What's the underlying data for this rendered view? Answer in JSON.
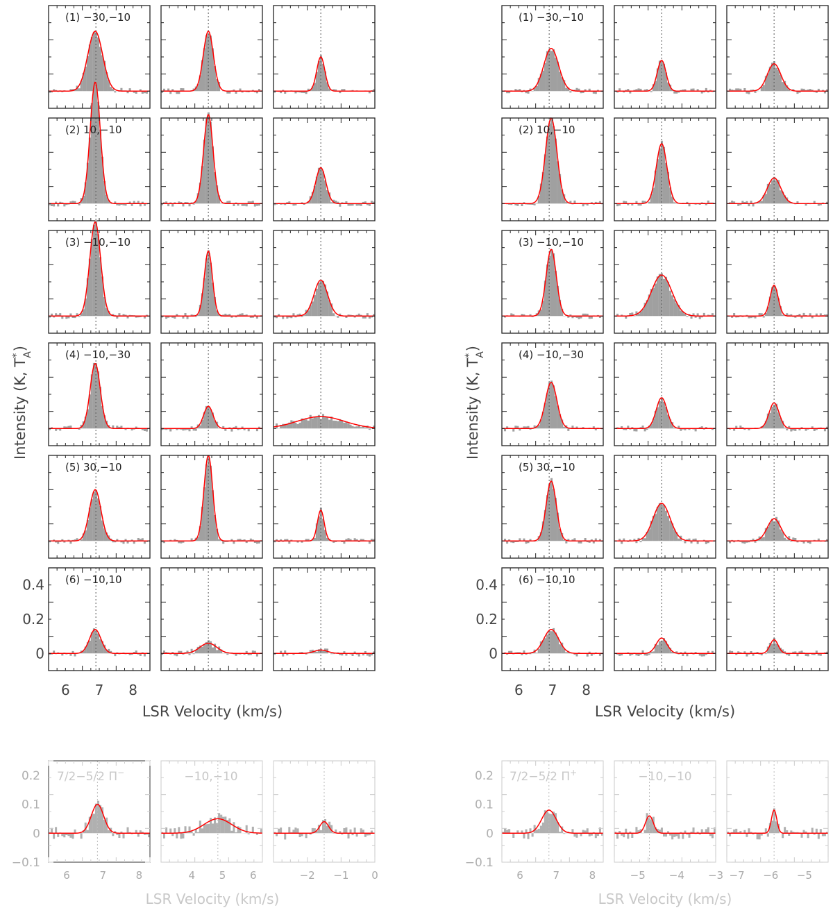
{
  "left_group": {
    "ylabel": "Intensity (K, T",
    "ylabel_sup": "*",
    "ylabel_sub": "A",
    "ylabel_close": ")",
    "xlabel": "LSR Velocity (km/s)",
    "x_ticks": [
      "6",
      "7",
      "8"
    ],
    "y_ticks": [
      "0.4",
      "0.2",
      "0"
    ],
    "row_labels": [
      "(1) −30,−10",
      "(2) 10,−10",
      "(3) −10,−10",
      "(4) −10,−30",
      "(5) 30,−10",
      "(6) −10,10"
    ]
  },
  "right_group": {
    "ylabel": "Intensity (K, T",
    "ylabel_sup": "*",
    "ylabel_sub": "A",
    "ylabel_close": ")",
    "xlabel": "LSR Velocity (km/s)",
    "x_ticks": [
      "6",
      "7",
      "8"
    ],
    "y_ticks": [
      "0.4",
      "0.2",
      "0"
    ],
    "row_labels": [
      "(1) −30,−10",
      "(2) 10,−10",
      "(3) −10,−10",
      "(4) −10,−30",
      "(5) 30,−10",
      "(6) −10,10"
    ]
  },
  "bottom_left": {
    "label_main": "7/2−5/2 Π",
    "label_sup": "−",
    "offset_label": "−10,−10",
    "y_ticks": [
      "0.2",
      "0.1",
      "0",
      "−0.1"
    ],
    "panel_ticks": [
      [
        "6",
        "7",
        "8"
      ],
      [
        "4",
        "5",
        "6"
      ],
      [
        "−2",
        "−1",
        "0"
      ]
    ],
    "xlabel": "LSR Velocity (km/s)"
  },
  "bottom_right": {
    "label_main": "7/2−5/2 Π",
    "label_sup": "+",
    "offset_label": "−10,−10",
    "y_ticks": [
      "0.2",
      "0.1",
      "0",
      "−0.1"
    ],
    "panel_ticks": [
      [
        "6",
        "7",
        "8"
      ],
      [
        "−5",
        "−4",
        "−3"
      ],
      [
        "−7",
        "−6",
        "−5"
      ]
    ],
    "xlabel": "LSR Velocity (km/s)"
  },
  "chart_data": [
    {
      "type": "line",
      "panel": "left-group",
      "xlabel": "LSR Velocity (km/s)",
      "ylabel": "Intensity (K, T*A)",
      "xlim_col1": [
        5.5,
        8.5
      ],
      "ylim": [
        -0.1,
        0.5
      ],
      "vlsr_col1": 6.9,
      "fit_color": "#ff0000",
      "data_color": "#a0a0a0",
      "rows": [
        {
          "offset": "-30,-10",
          "peaks": [
            0.35,
            0.35,
            0.2
          ],
          "widths": [
            0.22,
            0.15,
            0.12
          ]
        },
        {
          "offset": "10,-10",
          "peaks": [
            0.71,
            0.52,
            0.21
          ],
          "widths": [
            0.15,
            0.14,
            0.15
          ]
        },
        {
          "offset": "-10,-10",
          "peaks": [
            0.55,
            0.38,
            0.21
          ],
          "widths": [
            0.16,
            0.12,
            0.2
          ]
        },
        {
          "offset": "-10,-30",
          "peaks": [
            0.38,
            0.13,
            0.07
          ],
          "widths": [
            0.15,
            0.14,
            0.7
          ]
        },
        {
          "offset": "30,-10",
          "peaks": [
            0.3,
            0.5,
            0.18
          ],
          "widths": [
            0.17,
            0.13,
            0.1
          ]
        },
        {
          "offset": "-10,10",
          "peaks": [
            0.14,
            0.06,
            0.02
          ],
          "widths": [
            0.17,
            0.25,
            0.2
          ]
        }
      ]
    },
    {
      "type": "line",
      "panel": "right-group",
      "xlabel": "LSR Velocity (km/s)",
      "ylabel": "Intensity (K, T*A)",
      "xlim_col1": [
        5.5,
        8.5
      ],
      "ylim": [
        -0.1,
        0.5
      ],
      "vlsr_col1": 6.9,
      "fit_color": "#ff0000",
      "data_color": "#a0a0a0",
      "rows": [
        {
          "offset": "-30,-10",
          "peaks": [
            0.25,
            0.18,
            0.16
          ],
          "widths": [
            0.22,
            0.13,
            0.2
          ]
        },
        {
          "offset": "10,-10",
          "peaks": [
            0.5,
            0.35,
            0.15
          ],
          "widths": [
            0.17,
            0.16,
            0.2
          ]
        },
        {
          "offset": "-10,-10",
          "peaks": [
            0.39,
            0.24,
            0.18
          ],
          "widths": [
            0.15,
            0.3,
            0.12
          ]
        },
        {
          "offset": "-10,-30",
          "peaks": [
            0.27,
            0.18,
            0.15
          ],
          "widths": [
            0.17,
            0.16,
            0.15
          ]
        },
        {
          "offset": "30,-10",
          "peaks": [
            0.35,
            0.22,
            0.13
          ],
          "widths": [
            0.15,
            0.25,
            0.2
          ]
        },
        {
          "offset": "-10,10",
          "peaks": [
            0.14,
            0.09,
            0.08
          ],
          "widths": [
            0.22,
            0.16,
            0.12
          ]
        }
      ]
    },
    {
      "type": "line",
      "panel": "bottom-left",
      "transition": "7/2-5/2 Π-",
      "offset": "-10,-10",
      "xlabel": "LSR Velocity (km/s)",
      "ylim": [
        -0.1,
        0.25
      ],
      "panels": [
        {
          "xlim": [
            5.5,
            8.3
          ],
          "ticks": [
            6,
            7,
            8
          ],
          "center": 6.85,
          "peak": 0.1,
          "width": 0.17
        },
        {
          "xlim": [
            3.0,
            6.3
          ],
          "ticks": [
            4,
            5,
            6
          ],
          "center": 4.85,
          "peak": 0.05,
          "width": 0.45
        },
        {
          "xlim": [
            -3.0,
            0.0
          ],
          "ticks": [
            -2,
            -1,
            0
          ],
          "center": -1.5,
          "peak": 0.04,
          "width": 0.13
        }
      ]
    },
    {
      "type": "line",
      "panel": "bottom-right",
      "transition": "7/2-5/2 Π+",
      "offset": "-10,-10",
      "xlabel": "LSR Velocity (km/s)",
      "ylim": [
        -0.1,
        0.25
      ],
      "panels": [
        {
          "xlim": [
            5.5,
            8.3
          ],
          "ticks": [
            6,
            7,
            8
          ],
          "center": 6.8,
          "peak": 0.08,
          "width": 0.2
        },
        {
          "xlim": [
            -5.6,
            -3.0
          ],
          "ticks": [
            -5,
            -4,
            -3
          ],
          "center": -4.7,
          "peak": 0.06,
          "width": 0.1
        },
        {
          "xlim": [
            -7.3,
            -4.3
          ],
          "ticks": [
            -7,
            -6,
            -5
          ],
          "center": -5.9,
          "peak": 0.08,
          "width": 0.08
        }
      ]
    }
  ]
}
